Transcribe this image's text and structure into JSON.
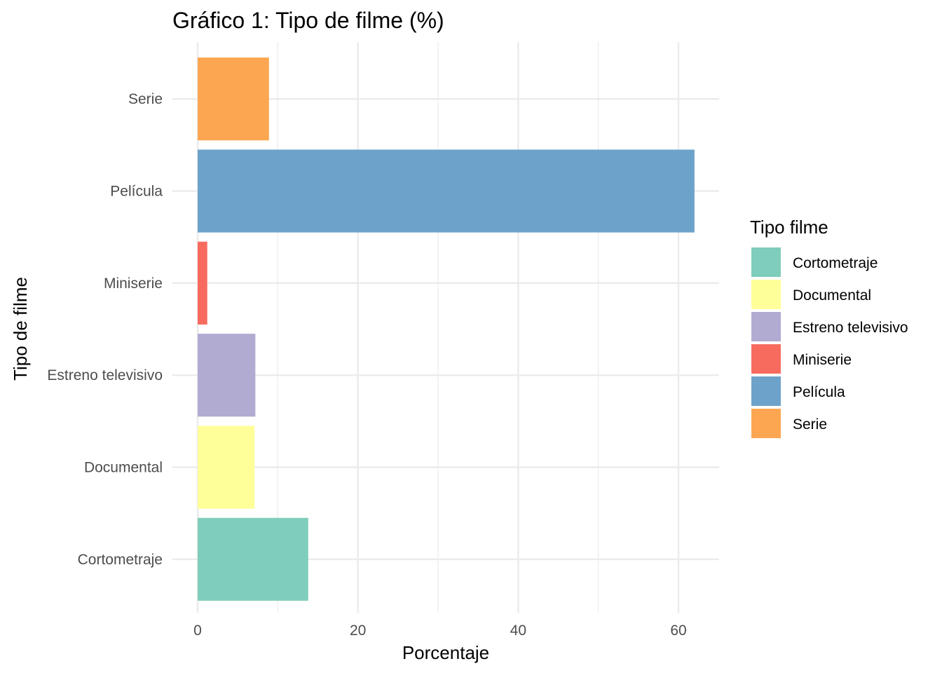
{
  "chart_data": {
    "type": "bar",
    "orientation": "horizontal",
    "title": "Gráfico 1: Tipo de filme (%)",
    "xlabel": "Porcentaje",
    "ylabel": "Tipo de filme",
    "categories": [
      "Cortometraje",
      "Documental",
      "Estreno televisivo",
      "Miniserie",
      "Película",
      "Serie"
    ],
    "values": [
      13.8,
      7.1,
      7.2,
      1.2,
      62.0,
      8.9
    ],
    "colors": [
      "#7FCDBB",
      "#FFFF99",
      "#B1ABD1",
      "#F76B5F",
      "#6DA2CA",
      "#FCA651"
    ],
    "xlim": [
      0,
      65
    ],
    "xticks": [
      0,
      20,
      40,
      60
    ],
    "grid": true,
    "legend": {
      "title": "Tipo filme",
      "position": "right",
      "items": [
        "Cortometraje",
        "Documental",
        "Estreno televisivo",
        "Miniserie",
        "Película",
        "Serie"
      ]
    }
  }
}
